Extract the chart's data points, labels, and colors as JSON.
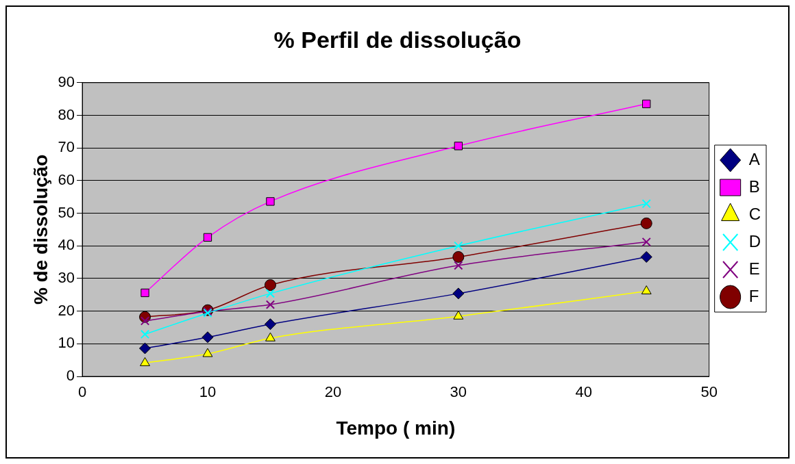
{
  "chart_data": {
    "type": "line",
    "title": "% Perfil de dissolução",
    "xlabel": "Tempo ( min)",
    "ylabel": "% de dissolução",
    "x": [
      5,
      10,
      15,
      30,
      45
    ],
    "xlim": [
      0,
      50
    ],
    "xticks": [
      0,
      10,
      20,
      30,
      40,
      50
    ],
    "ylim": [
      0,
      90
    ],
    "yticks": [
      0,
      10,
      20,
      30,
      40,
      50,
      60,
      70,
      80,
      90
    ],
    "grid": "y",
    "legend": "right",
    "series": [
      {
        "name": "A",
        "color": "#000080",
        "marker": "diamond",
        "values": [
          8.6,
          12.0,
          16.0,
          25.4,
          36.6
        ]
      },
      {
        "name": "B",
        "color": "#ff00ff",
        "marker": "square",
        "values": [
          25.6,
          42.6,
          53.6,
          70.6,
          83.5
        ]
      },
      {
        "name": "C",
        "color": "#ffff00",
        "marker": "triangle",
        "values": [
          4.1,
          6.9,
          11.7,
          18.4,
          26.1
        ]
      },
      {
        "name": "D",
        "color": "#00ffff",
        "marker": "cross",
        "values": [
          12.9,
          19.4,
          25.4,
          40.0,
          52.9
        ]
      },
      {
        "name": "E",
        "color": "#800080",
        "marker": "cross",
        "values": [
          17.0,
          19.9,
          22.0,
          34.0,
          41.2
        ]
      },
      {
        "name": "F",
        "color": "#800000",
        "marker": "circle",
        "values": [
          18.2,
          20.3,
          28.0,
          36.6,
          46.9
        ]
      }
    ]
  }
}
